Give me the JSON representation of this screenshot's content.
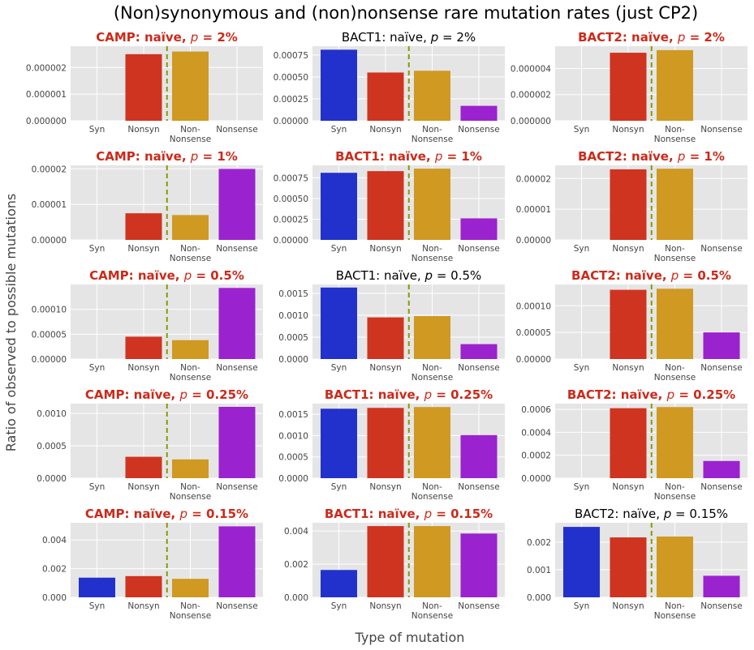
{
  "figure": {
    "title": "(Non)synonymous and (non)nonsense rare mutation rates (just CP2)",
    "xlabel": "Type of mutation",
    "ylabel": "Ratio of observed to possible mutations"
  },
  "colors": {
    "Syn": "#2231cc",
    "Nonsyn": "#cf3420",
    "Non-Nonsense": "#cf9922",
    "Nonsense": "#9b22cf",
    "highlight_title": "#cc2a1a",
    "divider": "#8a9a00",
    "panel_bg": "#e5e5e5",
    "grid": "#ffffff"
  },
  "chart_data": [
    {
      "type": "bar",
      "title": "CAMP: naïve, p = 2%",
      "title_prefix": "CAMP: naïve, ",
      "title_p": "p",
      "title_value": " = 2%",
      "highlighted": true,
      "categories": [
        "Syn",
        "Nonsyn",
        "Non-Nonsense",
        "Nonsense"
      ],
      "values": [
        0,
        2.5e-06,
        2.6e-06,
        0
      ],
      "ylim": [
        0,
        2.8e-06
      ],
      "yticks": [
        0,
        1e-06,
        2e-06
      ],
      "ytick_labels": [
        "0.000000",
        "0.000001",
        "0.000002"
      ]
    },
    {
      "type": "bar",
      "title": "BACT1: naïve, p = 2%",
      "title_prefix": "BACT1: naïve, ",
      "title_p": "p",
      "title_value": " = 2%",
      "highlighted": false,
      "categories": [
        "Syn",
        "Nonsyn",
        "Non-Nonsense",
        "Nonsense"
      ],
      "values": [
        0.00081,
        0.00055,
        0.00057,
        0.00017
      ],
      "ylim": [
        0,
        0.00085
      ],
      "yticks": [
        0,
        0.00025,
        0.0005,
        0.00075
      ],
      "ytick_labels": [
        "0.00000",
        "0.00025",
        "0.00050",
        "0.00075"
      ]
    },
    {
      "type": "bar",
      "title": "BACT2: naïve, p = 2%",
      "title_prefix": "BACT2: naïve, ",
      "title_p": "p",
      "title_value": " = 2%",
      "highlighted": true,
      "categories": [
        "Syn",
        "Nonsyn",
        "Non-Nonsense",
        "Nonsense"
      ],
      "values": [
        0,
        5.2e-06,
        5.4e-06,
        0
      ],
      "ylim": [
        0,
        5.7e-06
      ],
      "yticks": [
        0,
        2e-06,
        4e-06
      ],
      "ytick_labels": [
        "0.000000",
        "0.000002",
        "0.000004"
      ]
    },
    {
      "type": "bar",
      "title": "CAMP: naïve, p = 1%",
      "title_prefix": "CAMP: naïve, ",
      "title_p": "p",
      "title_value": " = 1%",
      "highlighted": true,
      "categories": [
        "Syn",
        "Nonsyn",
        "Non-Nonsense",
        "Nonsense"
      ],
      "values": [
        0,
        7.5e-06,
        7e-06,
        2e-05
      ],
      "ylim": [
        0,
        2.1e-05
      ],
      "yticks": [
        0,
        1e-05,
        2e-05
      ],
      "ytick_labels": [
        "0.00000",
        "0.00001",
        "0.00002"
      ]
    },
    {
      "type": "bar",
      "title": "BACT1: naïve, p = 1%",
      "title_prefix": "BACT1: naïve, ",
      "title_p": "p",
      "title_value": " = 1%",
      "highlighted": true,
      "categories": [
        "Syn",
        "Nonsyn",
        "Non-Nonsense",
        "Nonsense"
      ],
      "values": [
        0.00081,
        0.00083,
        0.00086,
        0.00026
      ],
      "ylim": [
        0,
        0.0009
      ],
      "yticks": [
        0,
        0.00025,
        0.0005,
        0.00075
      ],
      "ytick_labels": [
        "0.00000",
        "0.00025",
        "0.00050",
        "0.00075"
      ]
    },
    {
      "type": "bar",
      "title": "BACT2: naïve, p = 1%",
      "title_prefix": "BACT2: naïve, ",
      "title_p": "p",
      "title_value": " = 1%",
      "highlighted": true,
      "categories": [
        "Syn",
        "Nonsyn",
        "Non-Nonsense",
        "Nonsense"
      ],
      "values": [
        0,
        2.3e-05,
        2.32e-05,
        0
      ],
      "ylim": [
        0,
        2.43e-05
      ],
      "yticks": [
        0,
        1e-05,
        2e-05
      ],
      "ytick_labels": [
        "0.00000",
        "0.00001",
        "0.00002"
      ]
    },
    {
      "type": "bar",
      "title": "CAMP: naïve, p = 0.5%",
      "title_prefix": "CAMP: naïve, ",
      "title_p": "p",
      "title_value": " = 0.5%",
      "highlighted": true,
      "categories": [
        "Syn",
        "Nonsyn",
        "Non-Nonsense",
        "Nonsense"
      ],
      "values": [
        0,
        4.5e-05,
        3.8e-05,
        0.000143
      ],
      "ylim": [
        0,
        0.00015
      ],
      "yticks": [
        0,
        5e-05,
        0.0001
      ],
      "ytick_labels": [
        "0.00000",
        "0.00005",
        "0.00010"
      ]
    },
    {
      "type": "bar",
      "title": "BACT1: naïve, p = 0.5%",
      "title_prefix": "BACT1: naïve, ",
      "title_p": "p",
      "title_value": " = 0.5%",
      "highlighted": false,
      "categories": [
        "Syn",
        "Nonsyn",
        "Non-Nonsense",
        "Nonsense"
      ],
      "values": [
        0.00163,
        0.00095,
        0.00098,
        0.00034
      ],
      "ylim": [
        0,
        0.0017
      ],
      "yticks": [
        0,
        0.0005,
        0.001,
        0.0015
      ],
      "ytick_labels": [
        "0.0000",
        "0.0005",
        "0.0010",
        "0.0015"
      ]
    },
    {
      "type": "bar",
      "title": "BACT2: naïve, p = 0.5%",
      "title_prefix": "BACT2: naïve, ",
      "title_p": "p",
      "title_value": " = 0.5%",
      "highlighted": true,
      "categories": [
        "Syn",
        "Nonsyn",
        "Non-Nonsense",
        "Nonsense"
      ],
      "values": [
        0,
        0.00013,
        0.000132,
        5e-05
      ],
      "ylim": [
        0,
        0.00014
      ],
      "yticks": [
        0,
        5e-05,
        0.0001
      ],
      "ytick_labels": [
        "0.00000",
        "0.00005",
        "0.00010"
      ]
    },
    {
      "type": "bar",
      "title": "CAMP: naïve, p = 0.25%",
      "title_prefix": "CAMP: naïve, ",
      "title_p": "p",
      "title_value": " = 0.25%",
      "highlighted": true,
      "categories": [
        "Syn",
        "Nonsyn",
        "Non-Nonsense",
        "Nonsense"
      ],
      "values": [
        0,
        0.00033,
        0.00029,
        0.0011
      ],
      "ylim": [
        0,
        0.00115
      ],
      "yticks": [
        0,
        0.0005,
        0.001
      ],
      "ytick_labels": [
        "0.0000",
        "0.0005",
        "0.0010"
      ]
    },
    {
      "type": "bar",
      "title": "BACT1: naïve, p = 0.25%",
      "title_prefix": "BACT1: naïve, ",
      "title_p": "p",
      "title_value": " = 0.25%",
      "highlighted": true,
      "categories": [
        "Syn",
        "Nonsyn",
        "Non-Nonsense",
        "Nonsense"
      ],
      "values": [
        0.00163,
        0.00165,
        0.00167,
        0.00101
      ],
      "ylim": [
        0,
        0.00175
      ],
      "yticks": [
        0,
        0.0005,
        0.001,
        0.0015
      ],
      "ytick_labels": [
        "0.0000",
        "0.0005",
        "0.0010",
        "0.0015"
      ]
    },
    {
      "type": "bar",
      "title": "BACT2: naïve, p = 0.25%",
      "title_prefix": "BACT2: naïve, ",
      "title_p": "p",
      "title_value": " = 0.25%",
      "highlighted": true,
      "categories": [
        "Syn",
        "Nonsyn",
        "Non-Nonsense",
        "Nonsense"
      ],
      "values": [
        0,
        0.00061,
        0.00062,
        0.00015
      ],
      "ylim": [
        0,
        0.00065
      ],
      "yticks": [
        0,
        0.0002,
        0.0004,
        0.0006
      ],
      "ytick_labels": [
        "0.0000",
        "0.0002",
        "0.0004",
        "0.0006"
      ]
    },
    {
      "type": "bar",
      "title": "CAMP: naïve, p = 0.15%",
      "title_prefix": "CAMP: naïve, ",
      "title_p": "p",
      "title_value": " = 0.15%",
      "highlighted": true,
      "categories": [
        "Syn",
        "Nonsyn",
        "Non-Nonsense",
        "Nonsense"
      ],
      "values": [
        0.00137,
        0.00148,
        0.00129,
        0.00495
      ],
      "ylim": [
        0,
        0.0052
      ],
      "yticks": [
        0,
        0.002,
        0.004
      ],
      "ytick_labels": [
        "0.000",
        "0.002",
        "0.004"
      ]
    },
    {
      "type": "bar",
      "title": "BACT1: naïve, p = 0.15%",
      "title_prefix": "BACT1: naïve, ",
      "title_p": "p",
      "title_value": " = 0.15%",
      "highlighted": true,
      "categories": [
        "Syn",
        "Nonsyn",
        "Non-Nonsense",
        "Nonsense"
      ],
      "values": [
        0.00165,
        0.0043,
        0.0043,
        0.00385
      ],
      "ylim": [
        0,
        0.0045
      ],
      "yticks": [
        0,
        0.002,
        0.004
      ],
      "ytick_labels": [
        "0.000",
        "0.002",
        "0.004"
      ]
    },
    {
      "type": "bar",
      "title": "BACT2: naïve, p = 0.15%",
      "title_prefix": "BACT2: naïve, ",
      "title_p": "p",
      "title_value": " = 0.15%",
      "highlighted": false,
      "categories": [
        "Syn",
        "Nonsyn",
        "Non-Nonsense",
        "Nonsense"
      ],
      "values": [
        0.00255,
        0.00217,
        0.0022,
        0.00078
      ],
      "ylim": [
        0,
        0.0027
      ],
      "yticks": [
        0,
        0.001,
        0.002
      ],
      "ytick_labels": [
        "0.000",
        "0.001",
        "0.002"
      ]
    }
  ]
}
